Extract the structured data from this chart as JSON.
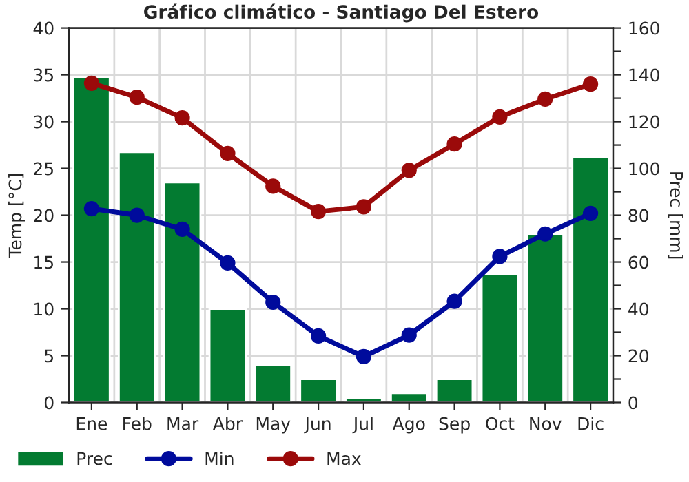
{
  "chart_data": {
    "type": "bar",
    "title": "Gráfico climático - Santiago Del Estero",
    "ylabel": "Temp [°C]",
    "y2label": "Prec [mm]",
    "categories": [
      "Ene",
      "Feb",
      "Mar",
      "Abr",
      "May",
      "Jun",
      "Jul",
      "Ago",
      "Sep",
      "Oct",
      "Nov",
      "Dic"
    ],
    "series": [
      {
        "name": "Prec",
        "axis": "y2",
        "color": "#037b31",
        "values": [
          139,
          107,
          94,
          40,
          16,
          10,
          2,
          4,
          10,
          55,
          72,
          105
        ]
      },
      {
        "name": "Min",
        "type": "line",
        "axis": "y",
        "color": "#000b9c",
        "marker": "circle",
        "values": [
          20.7,
          20.0,
          18.5,
          14.9,
          10.7,
          7.1,
          4.9,
          7.2,
          10.8,
          15.6,
          18.0,
          20.2
        ]
      },
      {
        "name": "Max",
        "type": "line",
        "axis": "y",
        "color": "#9b0a0a",
        "marker": "circle",
        "values": [
          34.1,
          32.6,
          30.4,
          26.6,
          23.1,
          20.4,
          20.9,
          24.8,
          27.6,
          30.5,
          32.4,
          34.0
        ]
      }
    ],
    "ylim": [
      0,
      40
    ],
    "yticks": [
      0,
      5,
      10,
      15,
      20,
      25,
      30,
      35,
      40
    ],
    "y2lim": [
      0,
      160
    ],
    "y2ticks": [
      0,
      {
        "value": 10,
        "label": null
      },
      20,
      {
        "value": 30,
        "label": null
      },
      40,
      {
        "value": 50,
        "label": null
      },
      60,
      {
        "value": 70,
        "label": null
      },
      80,
      {
        "value": 90,
        "label": null
      },
      100,
      {
        "value": 110,
        "label": null
      },
      120,
      {
        "value": 130,
        "label": null
      },
      140,
      {
        "value": 150,
        "label": null
      },
      160
    ],
    "grid": true,
    "legend": "bottom"
  }
}
